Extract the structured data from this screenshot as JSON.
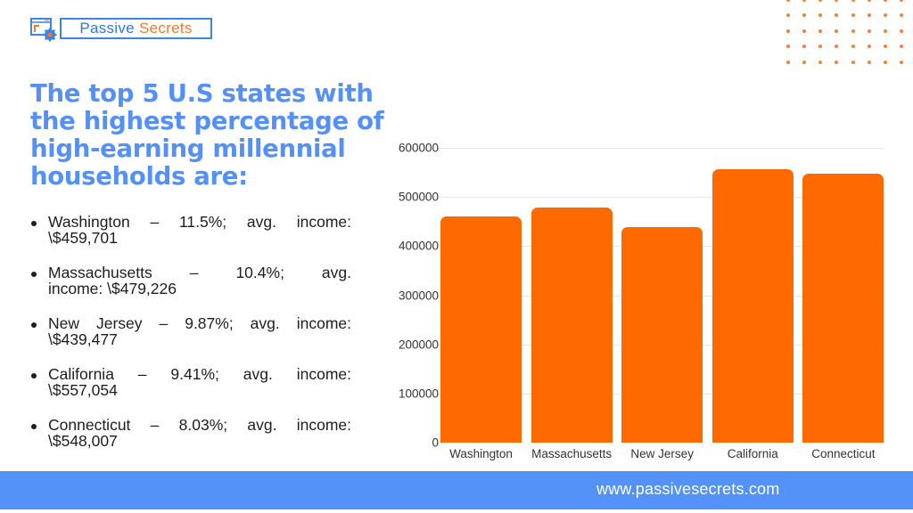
{
  "logo": {
    "word1": "Passive",
    "word2": "Secrets",
    "colors": {
      "blue": "#2f79d6",
      "orange": "#f07a2a"
    }
  },
  "title": "The top 5 U.S states with the highest percentage of high-earning millennial households are:",
  "bullets": [
    {
      "line1": "Washington – 11.5%; avg. income:",
      "line2": "\\$459,701"
    },
    {
      "line1": "Massachusetts – 10.4%; avg.",
      "line2": "income: \\$479,226"
    },
    {
      "line1": "New Jersey – 9.87%; avg. income:",
      "line2": "\\$439,477"
    },
    {
      "line1": "California – 9.41%; avg. income:",
      "line2": "\\$557,054"
    },
    {
      "line1": "Connecticut – 8.03%; avg. income:",
      "line2": "\\$548,007"
    }
  ],
  "footer": {
    "url": "www.passivesecrets.com"
  },
  "colors": {
    "title": "#5591f5",
    "bar": "#ff6a00",
    "footer": "#5592f7",
    "dots": "#f0843a"
  },
  "chart_data": {
    "type": "bar",
    "title": "",
    "xlabel": "",
    "ylabel": "",
    "categories": [
      "Washington",
      "Massachusetts",
      "New Jersey",
      "California",
      "Connecticut"
    ],
    "values": [
      459701,
      479226,
      439477,
      557054,
      548007
    ],
    "ylim": [
      0,
      600000
    ],
    "yticks": [
      "0",
      "100000",
      "200000",
      "300000",
      "400000",
      "500000",
      "600000"
    ],
    "grid": true,
    "legend": "none",
    "bar_color": "#ff6a00"
  }
}
